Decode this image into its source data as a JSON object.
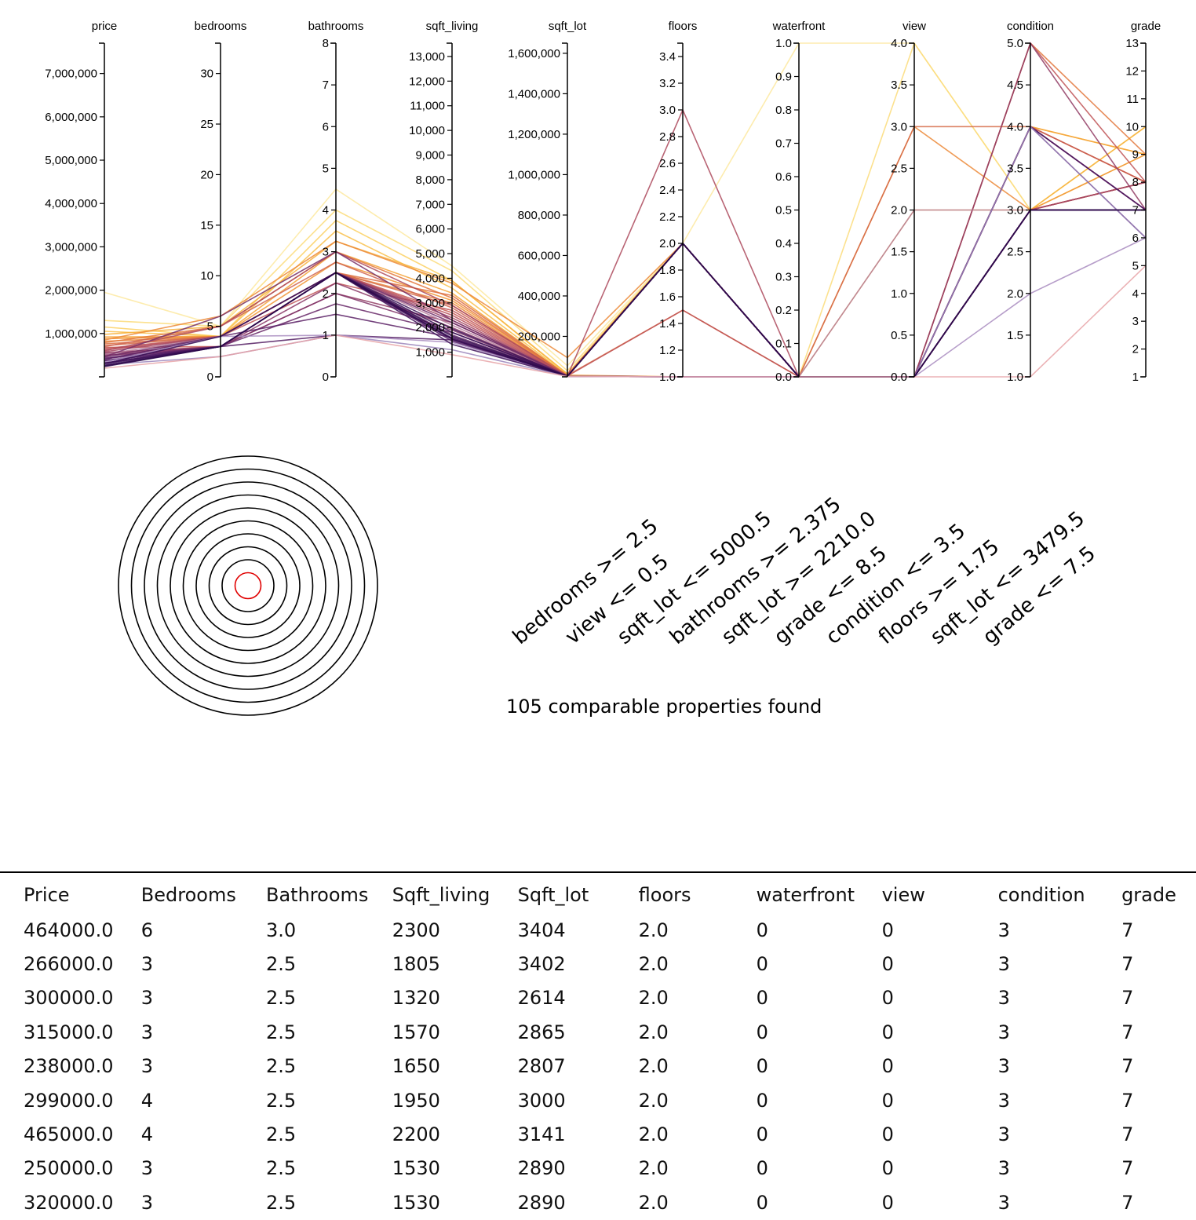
{
  "chart_data": {
    "type": "parallel-coordinates",
    "axes": [
      {
        "name": "price",
        "min": 0,
        "max": 7700000,
        "ticks": [
          0,
          1000000,
          2000000,
          3000000,
          4000000,
          5000000,
          6000000,
          7000000
        ],
        "tick_labels": [
          "",
          "1,000,000",
          "2,000,000",
          "3,000,000",
          "4,000,000",
          "5,000,000",
          "6,000,000",
          "7,000,000"
        ]
      },
      {
        "name": "bedrooms",
        "min": 0,
        "max": 33,
        "ticks": [
          0,
          5,
          10,
          15,
          20,
          25,
          30
        ],
        "tick_labels": [
          "0",
          "5",
          "10",
          "15",
          "20",
          "25",
          "30"
        ]
      },
      {
        "name": "bathrooms",
        "min": 0,
        "max": 8,
        "ticks": [
          0,
          1,
          2,
          3,
          4,
          5,
          6,
          7,
          8
        ],
        "tick_labels": [
          "0",
          "1",
          "2",
          "3",
          "4",
          "5",
          "6",
          "7",
          "8"
        ]
      },
      {
        "name": "sqft_living",
        "min": 0,
        "max": 13540,
        "ticks": [
          1000,
          2000,
          3000,
          4000,
          5000,
          6000,
          7000,
          8000,
          9000,
          10000,
          11000,
          12000,
          13000
        ],
        "tick_labels": [
          "1,000",
          "2,000",
          "3,000",
          "4,000",
          "5,000",
          "6,000",
          "7,000",
          "8,000",
          "9,000",
          "10,000",
          "11,000",
          "12,000",
          "13,000"
        ]
      },
      {
        "name": "sqft_lot",
        "min": 0,
        "max": 1650000,
        "ticks": [
          200000,
          400000,
          600000,
          800000,
          1000000,
          1200000,
          1400000,
          1600000
        ],
        "tick_labels": [
          "200,000",
          "400,000",
          "600,000",
          "800,000",
          "1,000,000",
          "1,200,000",
          "1,400,000",
          "1,600,000"
        ]
      },
      {
        "name": "floors",
        "min": 1.0,
        "max": 3.5,
        "ticks": [
          1.0,
          1.2,
          1.4,
          1.6,
          1.8,
          2.0,
          2.2,
          2.4,
          2.6,
          2.8,
          3.0,
          3.2,
          3.4
        ],
        "tick_labels": [
          "1.0",
          "1.2",
          "1.4",
          "1.6",
          "1.8",
          "2.0",
          "2.2",
          "2.4",
          "2.6",
          "2.8",
          "3.0",
          "3.2",
          "3.4"
        ]
      },
      {
        "name": "waterfront",
        "min": 0,
        "max": 1,
        "ticks": [
          0,
          0.1,
          0.2,
          0.3,
          0.4,
          0.5,
          0.6,
          0.7,
          0.8,
          0.9,
          1.0
        ],
        "tick_labels": [
          "0.0",
          "0.1",
          "0.2",
          "0.3",
          "0.4",
          "0.5",
          "0.6",
          "0.7",
          "0.8",
          "0.9",
          "1.0"
        ]
      },
      {
        "name": "view",
        "min": 0,
        "max": 4,
        "ticks": [
          0,
          0.5,
          1.0,
          1.5,
          2.0,
          2.5,
          3.0,
          3.5,
          4.0
        ],
        "tick_labels": [
          "0.0",
          "0.5",
          "1.0",
          "1.5",
          "2.0",
          "2.5",
          "3.0",
          "3.5",
          "4.0"
        ]
      },
      {
        "name": "condition",
        "min": 1,
        "max": 5,
        "ticks": [
          1.0,
          1.5,
          2.0,
          2.5,
          3.0,
          3.5,
          4.0,
          4.5,
          5.0
        ],
        "tick_labels": [
          "1.0",
          "1.5",
          "2.0",
          "2.5",
          "3.0",
          "3.5",
          "4.0",
          "4.5",
          "5.0"
        ]
      },
      {
        "name": "grade",
        "min": 1,
        "max": 13,
        "ticks": [
          1,
          2,
          3,
          4,
          5,
          6,
          7,
          8,
          9,
          10,
          11,
          12,
          13
        ],
        "tick_labels": [
          "1",
          "2",
          "3",
          "4",
          "5",
          "6",
          "7",
          "8",
          "9",
          "10",
          "11",
          "12",
          "13"
        ]
      }
    ],
    "lines": [
      {
        "v": [
          1950000,
          5,
          4.5,
          4500,
          55000,
          2,
          1,
          4,
          3,
          10
        ],
        "c": "#fde9a0"
      },
      {
        "v": [
          1300000,
          5,
          4.0,
          4300,
          30000,
          2,
          0,
          4,
          3,
          10
        ],
        "c": "#fcdc7a"
      },
      {
        "v": [
          1150000,
          4,
          3.75,
          3900,
          12000,
          2,
          0,
          2,
          3,
          9
        ],
        "c": "#fbd060"
      },
      {
        "v": [
          1050000,
          4,
          3.5,
          3600,
          9000,
          2,
          0,
          0,
          4,
          9
        ],
        "c": "#f9c04a"
      },
      {
        "v": [
          980000,
          5,
          3.25,
          3900,
          15000,
          2,
          0,
          0,
          3,
          10
        ],
        "c": "#f7b23d"
      },
      {
        "v": [
          920000,
          4,
          3.0,
          3400,
          6000,
          2,
          0,
          0,
          4,
          9
        ],
        "c": "#f4a236"
      },
      {
        "v": [
          880000,
          4,
          2.75,
          3100,
          8000,
          1,
          0,
          0,
          3,
          9
        ],
        "c": "#f19433"
      },
      {
        "v": [
          850000,
          6,
          3.25,
          3800,
          95000,
          2,
          0,
          3,
          3,
          8
        ],
        "c": "#ec8a38"
      },
      {
        "v": [
          820000,
          4,
          2.5,
          3000,
          5500,
          2,
          0,
          0,
          4,
          8
        ],
        "c": "#e9853a"
      },
      {
        "v": [
          790000,
          5,
          3.0,
          3200,
          5000,
          2,
          0,
          0,
          5,
          9
        ],
        "c": "#e3783d"
      },
      {
        "v": [
          760000,
          4,
          2.5,
          3300,
          7200,
          1.5,
          0,
          0,
          3,
          8
        ],
        "c": "#dc6e42"
      },
      {
        "v": [
          720000,
          4,
          2.5,
          2900,
          6500,
          2,
          0,
          3,
          4,
          8
        ],
        "c": "#d56a47"
      },
      {
        "v": [
          700000,
          5,
          2.75,
          2800,
          5000,
          2,
          0,
          0,
          3,
          8
        ],
        "c": "#cf6450"
      },
      {
        "v": [
          680000,
          3,
          2.5,
          2600,
          4000,
          2,
          0,
          0,
          4,
          8
        ],
        "c": "#c85b52"
      },
      {
        "v": [
          650000,
          4,
          2.25,
          2700,
          4200,
          1.5,
          0,
          0,
          5,
          8
        ],
        "c": "#c05456"
      },
      {
        "v": [
          620000,
          4,
          2.5,
          2500,
          3800,
          2,
          0,
          0,
          3,
          8
        ],
        "c": "#b84d58"
      },
      {
        "v": [
          600000,
          5,
          3.0,
          2900,
          3500,
          3,
          0,
          0,
          3,
          8
        ],
        "c": "#ad4a5d"
      },
      {
        "v": [
          580000,
          4,
          2.5,
          2400,
          3300,
          2,
          0,
          0,
          3,
          8
        ],
        "c": "#a44560"
      },
      {
        "v": [
          560000,
          3,
          2.5,
          2300,
          3400,
          2,
          0,
          0,
          4,
          7
        ],
        "c": "#9c4162"
      },
      {
        "v": [
          540000,
          3,
          2.0,
          2200,
          3200,
          1,
          0,
          0,
          5,
          7
        ],
        "c": "#923c64"
      },
      {
        "v": [
          520000,
          4,
          2.5,
          2100,
          3000,
          2,
          0,
          2,
          3,
          7
        ],
        "c": "#b57a9a"
      },
      {
        "v": [
          500000,
          3,
          2.25,
          2000,
          2900,
          2,
          0,
          0,
          4,
          7
        ],
        "c": "#893766"
      },
      {
        "v": [
          480000,
          3,
          2.0,
          1900,
          2800,
          2,
          0,
          0,
          3,
          7
        ],
        "c": "#803367"
      },
      {
        "v": [
          464000,
          6,
          3.0,
          2300,
          3404,
          2,
          0,
          0,
          3,
          7
        ],
        "c": "#772f67"
      },
      {
        "v": [
          465000,
          4,
          2.5,
          2200,
          3141,
          2,
          0,
          0,
          3,
          7
        ],
        "c": "#6e2b67"
      },
      {
        "v": [
          440000,
          3,
          1.75,
          1800,
          2700,
          1,
          0,
          0,
          4,
          7
        ],
        "c": "#672767"
      },
      {
        "v": [
          420000,
          3,
          2.5,
          1700,
          2600,
          2,
          0,
          0,
          3,
          7
        ],
        "c": "#602466"
      },
      {
        "v": [
          400000,
          4,
          1.5,
          1600,
          2500,
          1,
          0,
          0,
          4,
          6
        ],
        "c": "#5a2065"
      },
      {
        "v": [
          380000,
          3,
          1.0,
          1500,
          2400,
          1,
          0,
          0,
          3,
          7
        ],
        "c": "#541d63"
      },
      {
        "v": [
          360000,
          3,
          2.5,
          1450,
          2300,
          2,
          0,
          0,
          4,
          7
        ],
        "c": "#4e1a61"
      },
      {
        "v": [
          340000,
          4,
          1.0,
          1400,
          2200,
          1,
          0,
          0,
          2,
          6
        ],
        "c": "#a98cc0"
      },
      {
        "v": [
          320000,
          3,
          2.5,
          1530,
          2890,
          2,
          0,
          0,
          3,
          7
        ],
        "c": "#48175f"
      },
      {
        "v": [
          315000,
          3,
          2.5,
          1570,
          2865,
          2,
          0,
          0,
          3,
          7
        ],
        "c": "#43145c"
      },
      {
        "v": [
          300000,
          3,
          2.5,
          1320,
          2614,
          2,
          0,
          0,
          3,
          7
        ],
        "c": "#3e1259"
      },
      {
        "v": [
          299000,
          4,
          2.5,
          1950,
          3000,
          2,
          0,
          0,
          3,
          7
        ],
        "c": "#3a1056"
      },
      {
        "v": [
          280000,
          2,
          1.0,
          1100,
          2100,
          1,
          0,
          0,
          4,
          6
        ],
        "c": "#9a84bb"
      },
      {
        "v": [
          266000,
          3,
          2.5,
          1805,
          3402,
          2,
          0,
          0,
          3,
          7
        ],
        "c": "#360e53"
      },
      {
        "v": [
          250000,
          3,
          2.5,
          1530,
          2890,
          2,
          0,
          0,
          3,
          7
        ],
        "c": "#320c50"
      },
      {
        "v": [
          238000,
          3,
          2.5,
          1650,
          2807,
          2,
          0,
          0,
          3,
          7
        ],
        "c": "#2e0a4c"
      },
      {
        "v": [
          200000,
          2,
          1.0,
          900,
          2000,
          1,
          0,
          0,
          1,
          5
        ],
        "c": "#e8a4a8"
      }
    ]
  },
  "target": {
    "rings": 10
  },
  "rules": [
    "bedrooms >= 2.5",
    "view <= 0.5",
    "sqft_lot <= 5000.5",
    "bathrooms >= 2.375",
    "sqft_lot >= 2210.0",
    "grade <= 8.5",
    "condition <= 3.5",
    "floors >= 1.75",
    "sqft_lot <= 3479.5",
    "grade <= 7.5"
  ],
  "summary": "105 comparable properties found",
  "table": {
    "headers": [
      "Price",
      "Bedrooms",
      "Bathrooms",
      "Sqft_living",
      "Sqft_lot",
      "floors",
      "waterfront",
      "view",
      "condition",
      "grade"
    ],
    "rows": [
      [
        "464000.0",
        "6",
        "3.0",
        "2300",
        "3404",
        "2.0",
        "0",
        "0",
        "3",
        "7"
      ],
      [
        "266000.0",
        "3",
        "2.5",
        "1805",
        "3402",
        "2.0",
        "0",
        "0",
        "3",
        "7"
      ],
      [
        "300000.0",
        "3",
        "2.5",
        "1320",
        "2614",
        "2.0",
        "0",
        "0",
        "3",
        "7"
      ],
      [
        "315000.0",
        "3",
        "2.5",
        "1570",
        "2865",
        "2.0",
        "0",
        "0",
        "3",
        "7"
      ],
      [
        "238000.0",
        "3",
        "2.5",
        "1650",
        "2807",
        "2.0",
        "0",
        "0",
        "3",
        "7"
      ],
      [
        "299000.0",
        "4",
        "2.5",
        "1950",
        "3000",
        "2.0",
        "0",
        "0",
        "3",
        "7"
      ],
      [
        "465000.0",
        "4",
        "2.5",
        "2200",
        "3141",
        "2.0",
        "0",
        "0",
        "3",
        "7"
      ],
      [
        "250000.0",
        "3",
        "2.5",
        "1530",
        "2890",
        "2.0",
        "0",
        "0",
        "3",
        "7"
      ],
      [
        "320000.0",
        "3",
        "2.5",
        "1530",
        "2890",
        "2.0",
        "0",
        "0",
        "3",
        "7"
      ]
    ]
  }
}
